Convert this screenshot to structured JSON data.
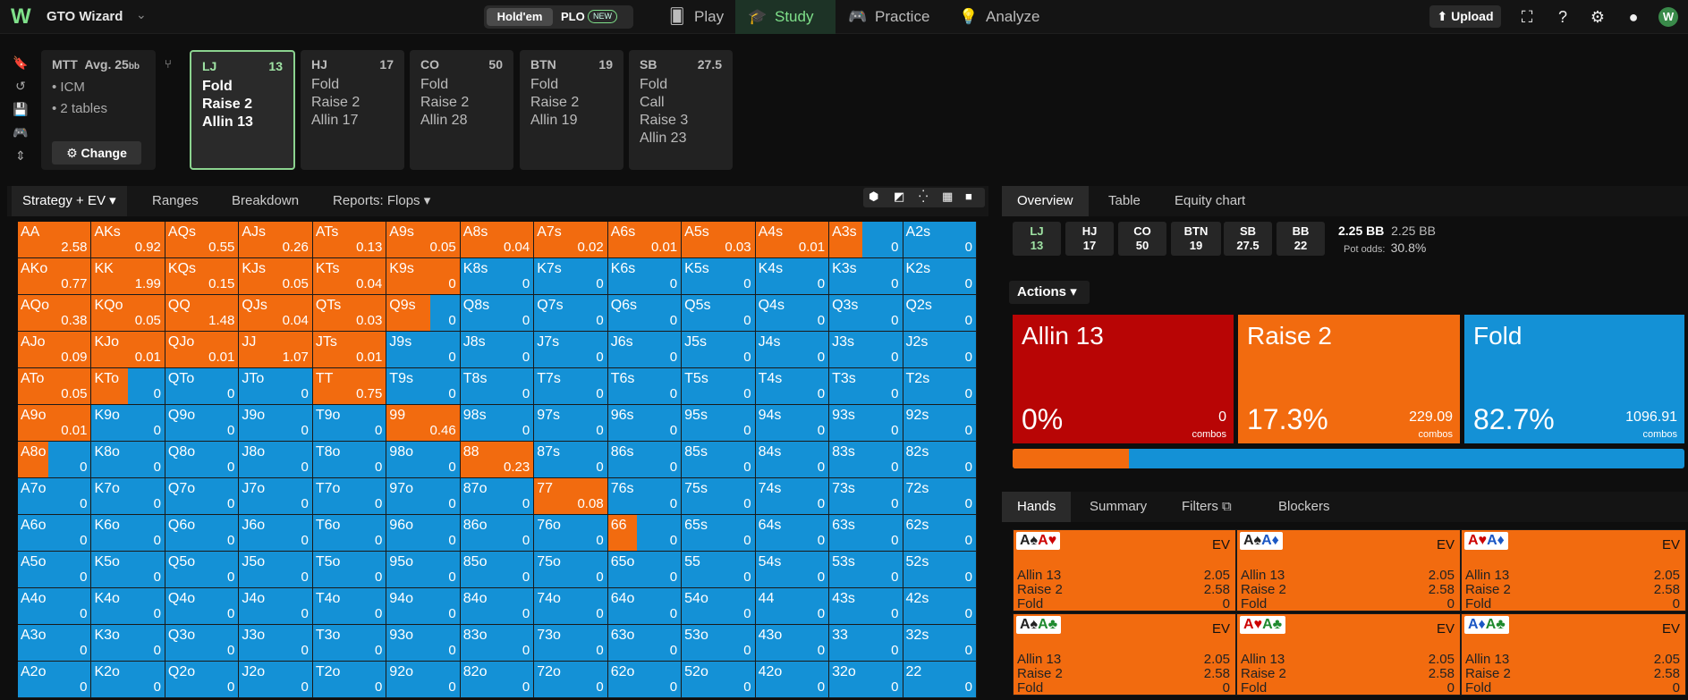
{
  "app": {
    "brand": "GTO Wizard",
    "game_holdem": "Hold'em",
    "game_plo": "PLO",
    "new_badge": "NEW",
    "nav": [
      "Play",
      "Study",
      "Practice",
      "Analyze"
    ],
    "upload": "Upload"
  },
  "game": {
    "title": "MTT",
    "avg_label": "Avg. 25",
    "avg_unit": "bb",
    "bullets": [
      "ICM",
      "2 tables"
    ],
    "change": "Change"
  },
  "positions": [
    {
      "pos": "LJ",
      "stack": "13",
      "actions": [
        "Fold",
        "Raise 2",
        "Allin 13"
      ]
    },
    {
      "pos": "HJ",
      "stack": "17",
      "actions": [
        "Fold",
        "Raise 2",
        "Allin 17"
      ]
    },
    {
      "pos": "CO",
      "stack": "50",
      "actions": [
        "Fold",
        "Raise 2",
        "Allin 28"
      ]
    },
    {
      "pos": "BTN",
      "stack": "19",
      "actions": [
        "Fold",
        "Raise 2",
        "Allin 19"
      ]
    },
    {
      "pos": "SB",
      "stack": "27.5",
      "actions": [
        "Fold",
        "Call",
        "Raise 3",
        "Allin 23"
      ]
    }
  ],
  "strategy_tabs": [
    "Strategy + EV",
    "Ranges",
    "Breakdown",
    "Reports: Flops"
  ],
  "right_tabs": [
    "Overview",
    "Table",
    "Equity chart"
  ],
  "mini_positions": [
    {
      "p": "LJ",
      "s": "13"
    },
    {
      "p": "HJ",
      "s": "17"
    },
    {
      "p": "CO",
      "s": "50"
    },
    {
      "p": "BTN",
      "s": "19"
    },
    {
      "p": "SB",
      "s": "27.5"
    },
    {
      "p": "BB",
      "s": "22"
    }
  ],
  "pot": {
    "a": "2.25 BB",
    "b": "2.25 BB",
    "odds_label": "Pot odds:",
    "odds": "30.8%"
  },
  "actions_label": "Actions",
  "action_boxes": [
    {
      "name": "Allin 13",
      "pct": "0%",
      "combos": "0",
      "color": "#b80505"
    },
    {
      "name": "Raise 2",
      "pct": "17.3%",
      "combos": "229.09",
      "color": "#f26b0f"
    },
    {
      "name": "Fold",
      "pct": "82.7%",
      "combos": "1096.91",
      "color": "#1491d6"
    }
  ],
  "combos_label": "combos",
  "hand_tabs": [
    "Hands",
    "Summary",
    "Filters",
    "Blockers"
  ],
  "hand_cards": [
    {
      "c1": "A♠",
      "c2": "A♥",
      "k1": "#222",
      "k2": "#c00"
    },
    {
      "c1": "A♠",
      "c2": "A♦",
      "k1": "#222",
      "k2": "#1b57c4"
    },
    {
      "c1": "A♥",
      "c2": "A♦",
      "k1": "#c00",
      "k2": "#1b57c4"
    },
    {
      "c1": "A♠",
      "c2": "A♣",
      "k1": "#222",
      "k2": "#1f8a2e"
    },
    {
      "c1": "A♥",
      "c2": "A♣",
      "k1": "#c00",
      "k2": "#1f8a2e"
    },
    {
      "c1": "A♦",
      "c2": "A♣",
      "k1": "#1b57c4",
      "k2": "#1f8a2e"
    }
  ],
  "hand_rows": [
    {
      "a": "Allin 13",
      "v": "2.05"
    },
    {
      "a": "Raise 2",
      "v": "2.58"
    },
    {
      "a": "Fold",
      "v": "0"
    }
  ],
  "ev_label": "EV",
  "grid": [
    [
      [
        "AA",
        "2.58",
        1
      ],
      [
        "AKs",
        "0.92",
        1
      ],
      [
        "AQs",
        "0.55",
        1
      ],
      [
        "AJs",
        "0.26",
        1
      ],
      [
        "ATs",
        "0.13",
        1
      ],
      [
        "A9s",
        "0.05",
        1
      ],
      [
        "A8s",
        "0.04",
        1
      ],
      [
        "A7s",
        "0.02",
        1
      ],
      [
        "A6s",
        "0.01",
        1
      ],
      [
        "A5s",
        "0.03",
        1
      ],
      [
        "A4s",
        "0.01",
        1
      ],
      [
        "A3s",
        "0",
        0.45
      ],
      [
        "A2s",
        "0",
        0
      ]
    ],
    [
      [
        "AKo",
        "0.77",
        1
      ],
      [
        "KK",
        "1.99",
        1
      ],
      [
        "KQs",
        "0.15",
        1
      ],
      [
        "KJs",
        "0.05",
        1
      ],
      [
        "KTs",
        "0.04",
        1
      ],
      [
        "K9s",
        "0",
        1
      ],
      [
        "K8s",
        "0",
        0
      ],
      [
        "K7s",
        "0",
        0
      ],
      [
        "K6s",
        "0",
        0
      ],
      [
        "K5s",
        "0",
        0
      ],
      [
        "K4s",
        "0",
        0
      ],
      [
        "K3s",
        "0",
        0
      ],
      [
        "K2s",
        "0",
        0
      ]
    ],
    [
      [
        "AQo",
        "0.38",
        1
      ],
      [
        "KQo",
        "0.05",
        1
      ],
      [
        "QQ",
        "1.48",
        1
      ],
      [
        "QJs",
        "0.04",
        1
      ],
      [
        "QTs",
        "0.03",
        1
      ],
      [
        "Q9s",
        "0",
        0.6
      ],
      [
        "Q8s",
        "0",
        0
      ],
      [
        "Q7s",
        "0",
        0
      ],
      [
        "Q6s",
        "0",
        0
      ],
      [
        "Q5s",
        "0",
        0
      ],
      [
        "Q4s",
        "0",
        0
      ],
      [
        "Q3s",
        "0",
        0
      ],
      [
        "Q2s",
        "0",
        0
      ]
    ],
    [
      [
        "AJo",
        "0.09",
        1
      ],
      [
        "KJo",
        "0.01",
        1
      ],
      [
        "QJo",
        "0.01",
        1
      ],
      [
        "JJ",
        "1.07",
        1
      ],
      [
        "JTs",
        "0.01",
        1
      ],
      [
        "J9s",
        "0",
        0
      ],
      [
        "J8s",
        "0",
        0
      ],
      [
        "J7s",
        "0",
        0
      ],
      [
        "J6s",
        "0",
        0
      ],
      [
        "J5s",
        "0",
        0
      ],
      [
        "J4s",
        "0",
        0
      ],
      [
        "J3s",
        "0",
        0
      ],
      [
        "J2s",
        "0",
        0
      ]
    ],
    [
      [
        "ATo",
        "0.05",
        1
      ],
      [
        "KTo",
        "0",
        0.5
      ],
      [
        "QTo",
        "0",
        0
      ],
      [
        "JTo",
        "0",
        0
      ],
      [
        "TT",
        "0.75",
        1
      ],
      [
        "T9s",
        "0",
        0
      ],
      [
        "T8s",
        "0",
        0
      ],
      [
        "T7s",
        "0",
        0
      ],
      [
        "T6s",
        "0",
        0
      ],
      [
        "T5s",
        "0",
        0
      ],
      [
        "T4s",
        "0",
        0
      ],
      [
        "T3s",
        "0",
        0
      ],
      [
        "T2s",
        "0",
        0
      ]
    ],
    [
      [
        "A9o",
        "0.01",
        1
      ],
      [
        "K9o",
        "0",
        0
      ],
      [
        "Q9o",
        "0",
        0
      ],
      [
        "J9o",
        "0",
        0
      ],
      [
        "T9o",
        "0",
        0
      ],
      [
        "99",
        "0.46",
        1
      ],
      [
        "98s",
        "0",
        0
      ],
      [
        "97s",
        "0",
        0
      ],
      [
        "96s",
        "0",
        0
      ],
      [
        "95s",
        "0",
        0
      ],
      [
        "94s",
        "0",
        0
      ],
      [
        "93s",
        "0",
        0
      ],
      [
        "92s",
        "0",
        0
      ]
    ],
    [
      [
        "A8o",
        "0",
        0.42
      ],
      [
        "K8o",
        "0",
        0
      ],
      [
        "Q8o",
        "0",
        0
      ],
      [
        "J8o",
        "0",
        0
      ],
      [
        "T8o",
        "0",
        0
      ],
      [
        "98o",
        "0",
        0
      ],
      [
        "88",
        "0.23",
        1
      ],
      [
        "87s",
        "0",
        0
      ],
      [
        "86s",
        "0",
        0
      ],
      [
        "85s",
        "0",
        0
      ],
      [
        "84s",
        "0",
        0
      ],
      [
        "83s",
        "0",
        0
      ],
      [
        "82s",
        "0",
        0
      ]
    ],
    [
      [
        "A7o",
        "0",
        0
      ],
      [
        "K7o",
        "0",
        0
      ],
      [
        "Q7o",
        "0",
        0
      ],
      [
        "J7o",
        "0",
        0
      ],
      [
        "T7o",
        "0",
        0
      ],
      [
        "97o",
        "0",
        0
      ],
      [
        "87o",
        "0",
        0
      ],
      [
        "77",
        "0.08",
        1
      ],
      [
        "76s",
        "0",
        0
      ],
      [
        "75s",
        "0",
        0
      ],
      [
        "74s",
        "0",
        0
      ],
      [
        "73s",
        "0",
        0
      ],
      [
        "72s",
        "0",
        0
      ]
    ],
    [
      [
        "A6o",
        "0",
        0
      ],
      [
        "K6o",
        "0",
        0
      ],
      [
        "Q6o",
        "0",
        0
      ],
      [
        "J6o",
        "0",
        0
      ],
      [
        "T6o",
        "0",
        0
      ],
      [
        "96o",
        "0",
        0
      ],
      [
        "86o",
        "0",
        0
      ],
      [
        "76o",
        "0",
        0
      ],
      [
        "66",
        "0",
        0.4
      ],
      [
        "65s",
        "0",
        0
      ],
      [
        "64s",
        "0",
        0
      ],
      [
        "63s",
        "0",
        0
      ],
      [
        "62s",
        "0",
        0
      ]
    ],
    [
      [
        "A5o",
        "0",
        0
      ],
      [
        "K5o",
        "0",
        0
      ],
      [
        "Q5o",
        "0",
        0
      ],
      [
        "J5o",
        "0",
        0
      ],
      [
        "T5o",
        "0",
        0
      ],
      [
        "95o",
        "0",
        0
      ],
      [
        "85o",
        "0",
        0
      ],
      [
        "75o",
        "0",
        0
      ],
      [
        "65o",
        "0",
        0
      ],
      [
        "55",
        "0",
        0
      ],
      [
        "54s",
        "0",
        0
      ],
      [
        "53s",
        "0",
        0
      ],
      [
        "52s",
        "0",
        0
      ]
    ],
    [
      [
        "A4o",
        "0",
        0
      ],
      [
        "K4o",
        "0",
        0
      ],
      [
        "Q4o",
        "0",
        0
      ],
      [
        "J4o",
        "0",
        0
      ],
      [
        "T4o",
        "0",
        0
      ],
      [
        "94o",
        "0",
        0
      ],
      [
        "84o",
        "0",
        0
      ],
      [
        "74o",
        "0",
        0
      ],
      [
        "64o",
        "0",
        0
      ],
      [
        "54o",
        "0",
        0
      ],
      [
        "44",
        "0",
        0
      ],
      [
        "43s",
        "0",
        0
      ],
      [
        "42s",
        "0",
        0
      ]
    ],
    [
      [
        "A3o",
        "0",
        0
      ],
      [
        "K3o",
        "0",
        0
      ],
      [
        "Q3o",
        "0",
        0
      ],
      [
        "J3o",
        "0",
        0
      ],
      [
        "T3o",
        "0",
        0
      ],
      [
        "93o",
        "0",
        0
      ],
      [
        "83o",
        "0",
        0
      ],
      [
        "73o",
        "0",
        0
      ],
      [
        "63o",
        "0",
        0
      ],
      [
        "53o",
        "0",
        0
      ],
      [
        "43o",
        "0",
        0
      ],
      [
        "33",
        "0",
        0
      ],
      [
        "32s",
        "0",
        0
      ]
    ],
    [
      [
        "A2o",
        "0",
        0
      ],
      [
        "K2o",
        "0",
        0
      ],
      [
        "Q2o",
        "0",
        0
      ],
      [
        "J2o",
        "0",
        0
      ],
      [
        "T2o",
        "0",
        0
      ],
      [
        "92o",
        "0",
        0
      ],
      [
        "82o",
        "0",
        0
      ],
      [
        "72o",
        "0",
        0
      ],
      [
        "62o",
        "0",
        0
      ],
      [
        "52o",
        "0",
        0
      ],
      [
        "42o",
        "0",
        0
      ],
      [
        "32o",
        "0",
        0
      ],
      [
        "22",
        "0",
        0
      ]
    ]
  ]
}
